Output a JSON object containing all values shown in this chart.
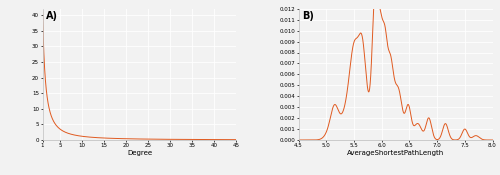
{
  "background_color": "#f2f2f2",
  "line_color": "#e05a20",
  "line_width": 0.7,
  "panel_a": {
    "label": "A)",
    "xlabel": "Degree",
    "xlim": [
      1,
      45
    ],
    "ylim": [
      0,
      42
    ],
    "yticks": [
      0,
      5,
      10,
      15,
      20,
      25,
      30,
      35,
      40
    ],
    "xticks": [
      1,
      5,
      10,
      15,
      20,
      25,
      30,
      35,
      40,
      45
    ],
    "xticklabels": [
      "1",
      "5",
      "10",
      "15",
      "20",
      "25",
      "30",
      "35",
      "40",
      "45"
    ]
  },
  "panel_b": {
    "label": "B)",
    "xlabel": "AverageShortestPathLength",
    "xlim": [
      4.5,
      8.0
    ],
    "ylim": [
      0,
      0.012
    ],
    "yticks": [
      0.0,
      0.001,
      0.002,
      0.003,
      0.004,
      0.005,
      0.006,
      0.007,
      0.008,
      0.009,
      0.01,
      0.011,
      0.012
    ],
    "xticks": [
      4.5,
      5.0,
      5.5,
      6.0,
      6.5,
      7.0,
      7.5,
      8.0
    ]
  },
  "label_fontsize": 6,
  "tick_fontsize": 4,
  "grid_color": "#ffffff",
  "grid_linewidth": 0.6
}
